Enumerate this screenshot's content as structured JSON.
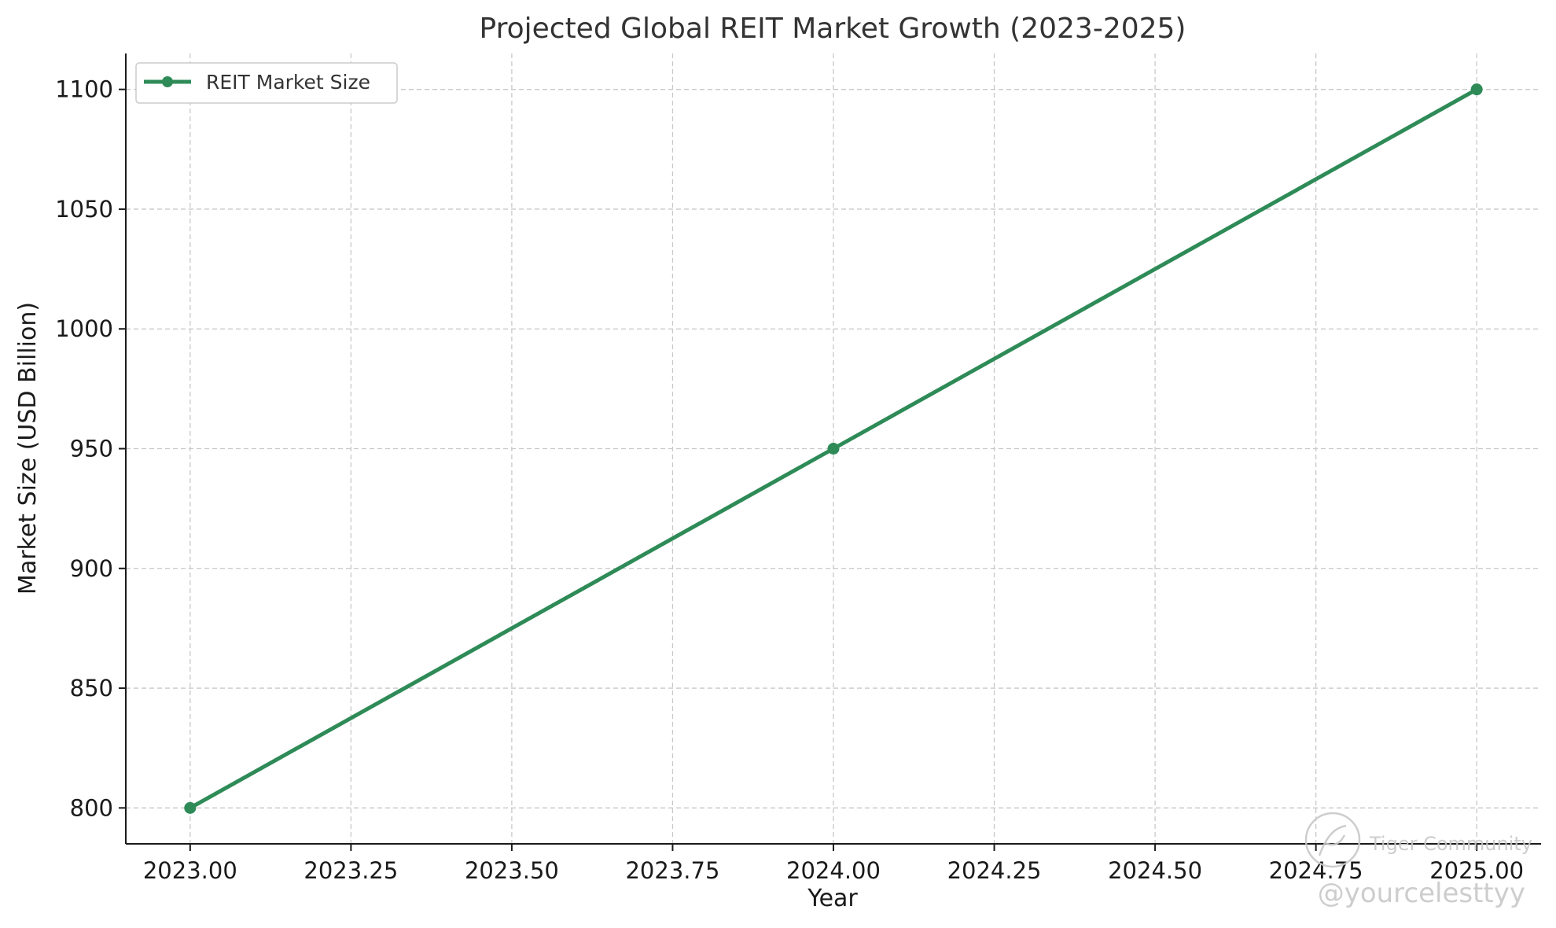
{
  "chart_data": {
    "type": "line",
    "title": "Projected Global REIT Market Growth (2023-2025)",
    "xlabel": "Year",
    "ylabel": "Market Size (USD Billion)",
    "x": [
      2023,
      2024,
      2025
    ],
    "series": [
      {
        "name": "REIT Market Size",
        "values": [
          800,
          950,
          1100
        ],
        "color": "#2e8b57"
      }
    ],
    "xlim": [
      2022.9,
      2025.1
    ],
    "ylim": [
      785,
      1115
    ],
    "xticks": [
      2023.0,
      2023.25,
      2023.5,
      2023.75,
      2024.0,
      2024.25,
      2024.5,
      2024.75,
      2025.0
    ],
    "xtick_labels": [
      "2023.00",
      "2023.25",
      "2023.50",
      "2023.75",
      "2024.00",
      "2024.25",
      "2024.50",
      "2024.75",
      "2025.00"
    ],
    "yticks": [
      800,
      850,
      900,
      950,
      1000,
      1050,
      1100
    ],
    "ytick_labels": [
      "800",
      "850",
      "900",
      "950",
      "1000",
      "1050",
      "1100"
    ],
    "grid": true,
    "legend_position": "top-left",
    "grid_color": "#c8c8c8",
    "axis_color": "#1a1a1a"
  },
  "watermark": {
    "brand": "Tiger Community",
    "handle": "@yourcelesttyy"
  }
}
